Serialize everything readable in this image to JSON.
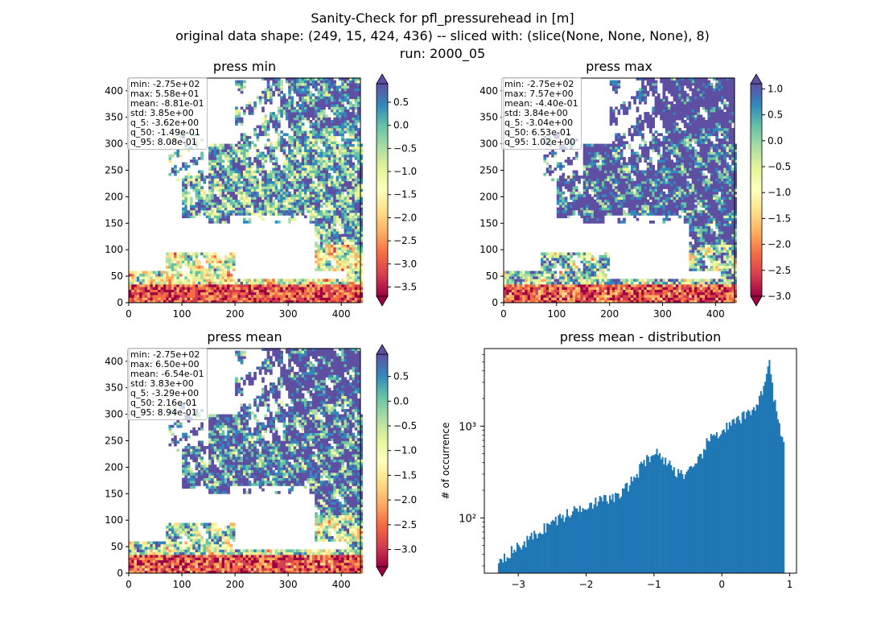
{
  "figure": {
    "title_lines": [
      "Sanity-Check for pfl_pressurehead in [m]",
      "original data shape: (249, 15, 424, 436) -- sliced with: (slice(None, None, None), 8)",
      "run: 2000_05"
    ]
  },
  "colors": {
    "spectral": [
      "#9e0142",
      "#d53e4f",
      "#f46d43",
      "#fdae61",
      "#fee08b",
      "#ffffbf",
      "#e6f598",
      "#abdda4",
      "#66c2a5",
      "#3288bd",
      "#5e4fa2"
    ],
    "hist_bar": "#1f77b4"
  },
  "chart_data": [
    {
      "type": "heatmap",
      "title": "press min",
      "xlim": [
        0,
        436
      ],
      "ylim": [
        0,
        424
      ],
      "xticks": [
        "0",
        "100",
        "200",
        "300",
        "400"
      ],
      "yticks": [
        "0",
        "50",
        "100",
        "150",
        "200",
        "250",
        "300",
        "350",
        "400"
      ],
      "colorbar": {
        "range": [
          -3.7,
          0.9
        ],
        "ticks": [
          "−3.5",
          "−3.0",
          "−2.5",
          "−2.0",
          "−1.5",
          "−1.0",
          "−0.5",
          "0.0",
          "0.5"
        ],
        "tick_values": [
          -3.5,
          -3.0,
          -2.5,
          -2.0,
          -1.5,
          -1.0,
          -0.5,
          0.0,
          0.5
        ],
        "extend": "both"
      },
      "stats": [
        "min: -2.75e+02",
        "max: 5.58e+01",
        "mean: -8.81e-01",
        "std: 3.85e+00",
        "q_5: -3.62e+00",
        "q_50: -1.49e-01",
        "q_95: 8.08e-01"
      ]
    },
    {
      "type": "heatmap",
      "title": "press max",
      "xlim": [
        0,
        436
      ],
      "ylim": [
        0,
        424
      ],
      "xticks": [
        "0",
        "100",
        "200",
        "300",
        "400"
      ],
      "yticks": [
        "0",
        "50",
        "100",
        "150",
        "200",
        "250",
        "300",
        "350",
        "400"
      ],
      "colorbar": {
        "range": [
          -3.0,
          1.1
        ],
        "ticks": [
          "−3.0",
          "−2.5",
          "−2.0",
          "−1.5",
          "−1.0",
          "−0.5",
          "0.0",
          "0.5",
          "1.0"
        ],
        "tick_values": [
          -3.0,
          -2.5,
          -2.0,
          -1.5,
          -1.0,
          -0.5,
          0.0,
          0.5,
          1.0
        ],
        "extend": "both"
      },
      "stats": [
        "min: -2.75e+02",
        "max: 7.57e+00",
        "mean: -4.40e-01",
        "std: 3.84e+00",
        "q_5: -3.04e+00",
        "q_50: 6.53e-01",
        "q_95: 1.02e+00"
      ]
    },
    {
      "type": "heatmap",
      "title": "press mean",
      "xlim": [
        0,
        436
      ],
      "ylim": [
        0,
        424
      ],
      "xticks": [
        "0",
        "100",
        "200",
        "300",
        "400"
      ],
      "yticks": [
        "0",
        "50",
        "100",
        "150",
        "200",
        "250",
        "300",
        "350",
        "400"
      ],
      "colorbar": {
        "range": [
          -3.35,
          0.95
        ],
        "ticks": [
          "−3.0",
          "−2.5",
          "−2.0",
          "−1.5",
          "−1.0",
          "−0.5",
          "0.0",
          "0.5"
        ],
        "tick_values": [
          -3.0,
          -2.5,
          -2.0,
          -1.5,
          -1.0,
          -0.5,
          0.0,
          0.5
        ],
        "extend": "both"
      },
      "stats": [
        "min: -2.75e+02",
        "max: 6.50e+00",
        "mean: -6.54e-01",
        "std: 3.83e+00",
        "q_5: -3.29e+00",
        "q_50: 2.16e-01",
        "q_95: 8.94e-01"
      ]
    },
    {
      "type": "bar",
      "title": "press mean - distribution",
      "ylabel": "# of occurrence",
      "yscale": "log",
      "xlim": [
        -3.5,
        1.1
      ],
      "ylim": [
        25,
        7000
      ],
      "xticks": [
        "−3",
        "−2",
        "−1",
        "0",
        "1"
      ],
      "xtick_values": [
        -3,
        -2,
        -1,
        0,
        1
      ],
      "yticks": [
        "10²",
        "10³"
      ],
      "ytick_values": [
        100,
        1000
      ],
      "bin_range": [
        -3.3,
        0.9
      ],
      "bin_width": 0.021,
      "profile_x": [
        -3.3,
        -3.0,
        -2.5,
        -2.0,
        -1.5,
        -1.3,
        -1.1,
        -1.0,
        -0.9,
        -0.7,
        -0.55,
        -0.4,
        -0.2,
        0.0,
        0.2,
        0.4,
        0.55,
        0.65,
        0.7,
        0.75,
        0.8,
        0.9
      ],
      "profile_y": [
        35,
        48,
        90,
        140,
        175,
        270,
        450,
        520,
        480,
        330,
        300,
        340,
        700,
        900,
        1100,
        1400,
        1900,
        3500,
        4800,
        2500,
        1500,
        600
      ]
    }
  ]
}
